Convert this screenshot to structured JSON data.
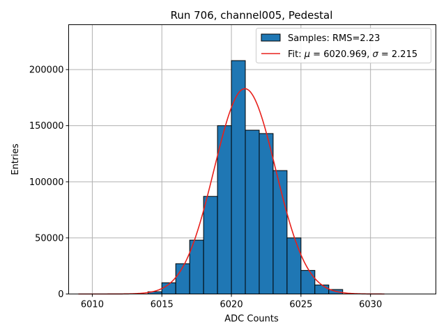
{
  "chart_data": {
    "type": "bar",
    "title": "Run 706, channel005, Pedestal",
    "xlabel": "ADC Counts",
    "ylabel": "Entries",
    "xlim": [
      6008.3,
      6034.7
    ],
    "ylim": [
      0,
      240000
    ],
    "xticks": [
      6010,
      6015,
      6020,
      6025,
      6030
    ],
    "xtick_labels": [
      "6010",
      "6015",
      "6020",
      "6025",
      "6030"
    ],
    "yticks": [
      0,
      50000,
      100000,
      150000,
      200000
    ],
    "ytick_labels": [
      "0",
      "50000",
      "100000",
      "150000",
      "200000"
    ],
    "grid": true,
    "legend_position": "top-right",
    "bin_width": 1,
    "bins": [
      {
        "x0": 6014,
        "value": 2000
      },
      {
        "x0": 6015,
        "value": 10000
      },
      {
        "x0": 6016,
        "value": 27000
      },
      {
        "x0": 6017,
        "value": 48000
      },
      {
        "x0": 6018,
        "value": 87000
      },
      {
        "x0": 6019,
        "value": 150000
      },
      {
        "x0": 6020,
        "value": 208000
      },
      {
        "x0": 6021,
        "value": 146000
      },
      {
        "x0": 6022,
        "value": 143000
      },
      {
        "x0": 6023,
        "value": 110000
      },
      {
        "x0": 6024,
        "value": 50000
      },
      {
        "x0": 6025,
        "value": 21000
      },
      {
        "x0": 6026,
        "value": 8000
      },
      {
        "x0": 6027,
        "value": 4000
      }
    ],
    "fit": {
      "mu": 6020.969,
      "sigma": 2.215,
      "amplitude": 183000,
      "x_start": 6009,
      "x_end": 6031
    },
    "legend": [
      {
        "label": "Samples: RMS=2.23",
        "kind": "patch"
      },
      {
        "label_prefix": "Fit: ",
        "mu_symbol": "μ",
        "mu_text": " = 6020.969, ",
        "sigma_symbol": "σ",
        "sigma_text": " = 2.215",
        "kind": "line"
      }
    ],
    "colors": {
      "bar_fill": "#1f77b4",
      "bar_edge": "#000000",
      "fit_line": "#e8201b",
      "grid": "#b0b0b0"
    }
  }
}
